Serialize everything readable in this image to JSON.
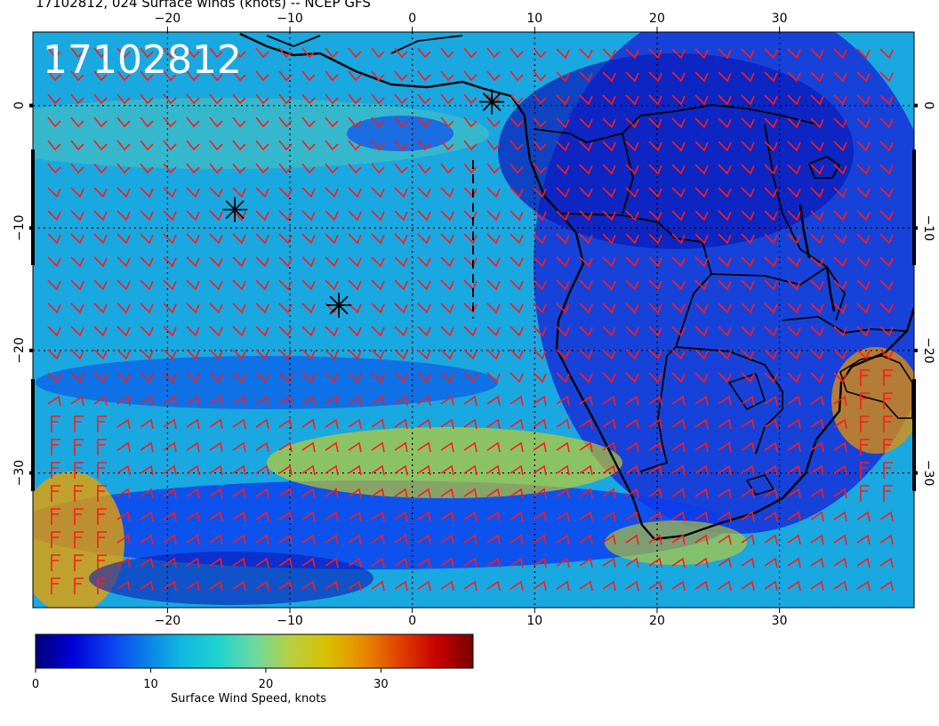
{
  "title": "17102812, 024 Surface winds (knots) -- NCEP GFS",
  "stamp": "17102812",
  "map": {
    "lon_range": [
      -31,
      41
    ],
    "lat_range": [
      -41,
      6
    ],
    "lon_ticks": [
      -20,
      -10,
      0,
      10,
      20,
      30
    ],
    "lat_ticks": [
      0,
      -10,
      -20,
      -30
    ],
    "lon_tick_labels": [
      "−20",
      "−10",
      "0",
      "10",
      "20",
      "30"
    ],
    "lat_tick_labels": [
      "0",
      "−10",
      "−20",
      "−30"
    ],
    "gridlines": "dotted",
    "wind_barb_color": "#ff1a1a",
    "coast_color": "#000000",
    "markers": [
      {
        "lon": 6.5,
        "lat": 0.3
      },
      {
        "lon": -14.5,
        "lat": -8.5
      },
      {
        "lon": -6.0,
        "lat": -16.3
      }
    ]
  },
  "colorbar": {
    "label": "Surface Wind Speed, knots",
    "min": 0,
    "max": 38,
    "tick_values": [
      0,
      10,
      20,
      30
    ],
    "tick_labels": [
      "0",
      "10",
      "20",
      "30"
    ],
    "colors": [
      "#00007a",
      "#0000d8",
      "#0a3cf0",
      "#0a7de8",
      "#10b7e0",
      "#1ed3d0",
      "#6cd8a0",
      "#b8d040",
      "#d8c000",
      "#e88a00",
      "#e04000",
      "#c80000",
      "#780000"
    ]
  }
}
